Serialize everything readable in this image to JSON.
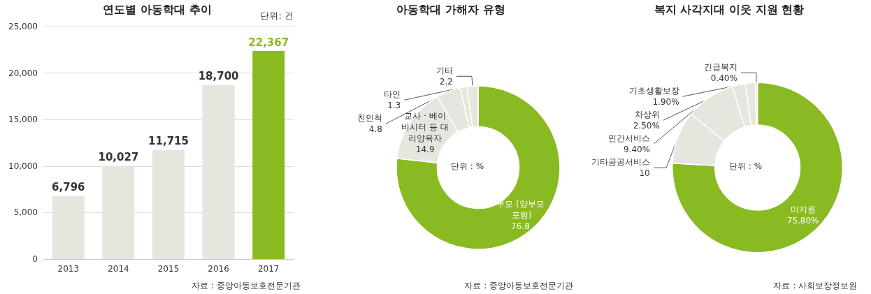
{
  "chart_data": [
    {
      "type": "bar",
      "title": "연도별 아동학대 추이",
      "categories": [
        "2013",
        "2014",
        "2015",
        "2016",
        "2017"
      ],
      "values": [
        6796,
        10027,
        11715,
        18700,
        22367
      ],
      "colors": [
        "#e6e6de",
        "#e6e6de",
        "#e6e6de",
        "#e6e6de",
        "#8aba22"
      ],
      "value_labels": [
        "6,796",
        "10,027",
        "11,715",
        "18,700",
        "22,367"
      ],
      "ylim": [
        0,
        25000
      ],
      "yticks": [
        {
          "value": 0,
          "label": "0"
        },
        {
          "value": 5000,
          "label": "5,000"
        },
        {
          "value": 10000,
          "label": "10,000"
        },
        {
          "value": 15000,
          "label": "15,000"
        },
        {
          "value": 20000,
          "label": "20,000"
        },
        {
          "value": 25000,
          "label": "25,000"
        }
      ],
      "grid": "y",
      "legend": false,
      "annotations": [
        "단위: 건",
        "자료 : 중앙아동보호전문기관"
      ]
    },
    {
      "type": "donut",
      "title": "아동학대 가해자 유형",
      "categories": [
        "부모 (양부모 포함)",
        "교사 · 베이비시터 등 대리양육자",
        "친인척",
        "타인",
        "기타"
      ],
      "values": [
        76.8,
        14.9,
        4.8,
        1.3,
        2.2
      ],
      "colors": [
        "#8aba22",
        "#e6e6de",
        "#e6e6de",
        "#e6e6de",
        "#e6e6de"
      ],
      "data_labels": true,
      "legend": false,
      "annotations": [
        "단위 : %",
        "자료 : 중앙아동보호전문기관"
      ]
    },
    {
      "type": "donut",
      "title": "복지 사각지대 이웃 지원 현황",
      "categories": [
        "미지원",
        "기타공공서비스",
        "민간서비스",
        "차상위",
        "기초생활보장",
        "긴급복지"
      ],
      "values": [
        75.8,
        10,
        9.4,
        2.5,
        1.9,
        0.4
      ],
      "colors": [
        "#8aba22",
        "#e6e6de",
        "#e6e6de",
        "#e6e6de",
        "#e6e6de",
        "#e6e6de"
      ],
      "value_labels": [
        "75.80%",
        "10",
        "9.40%",
        "2.50%",
        "1.90%",
        "0.40%"
      ],
      "legend": false,
      "annotations": [
        "단위 : %",
        "자료 : 사회보장정보원"
      ]
    }
  ]
}
